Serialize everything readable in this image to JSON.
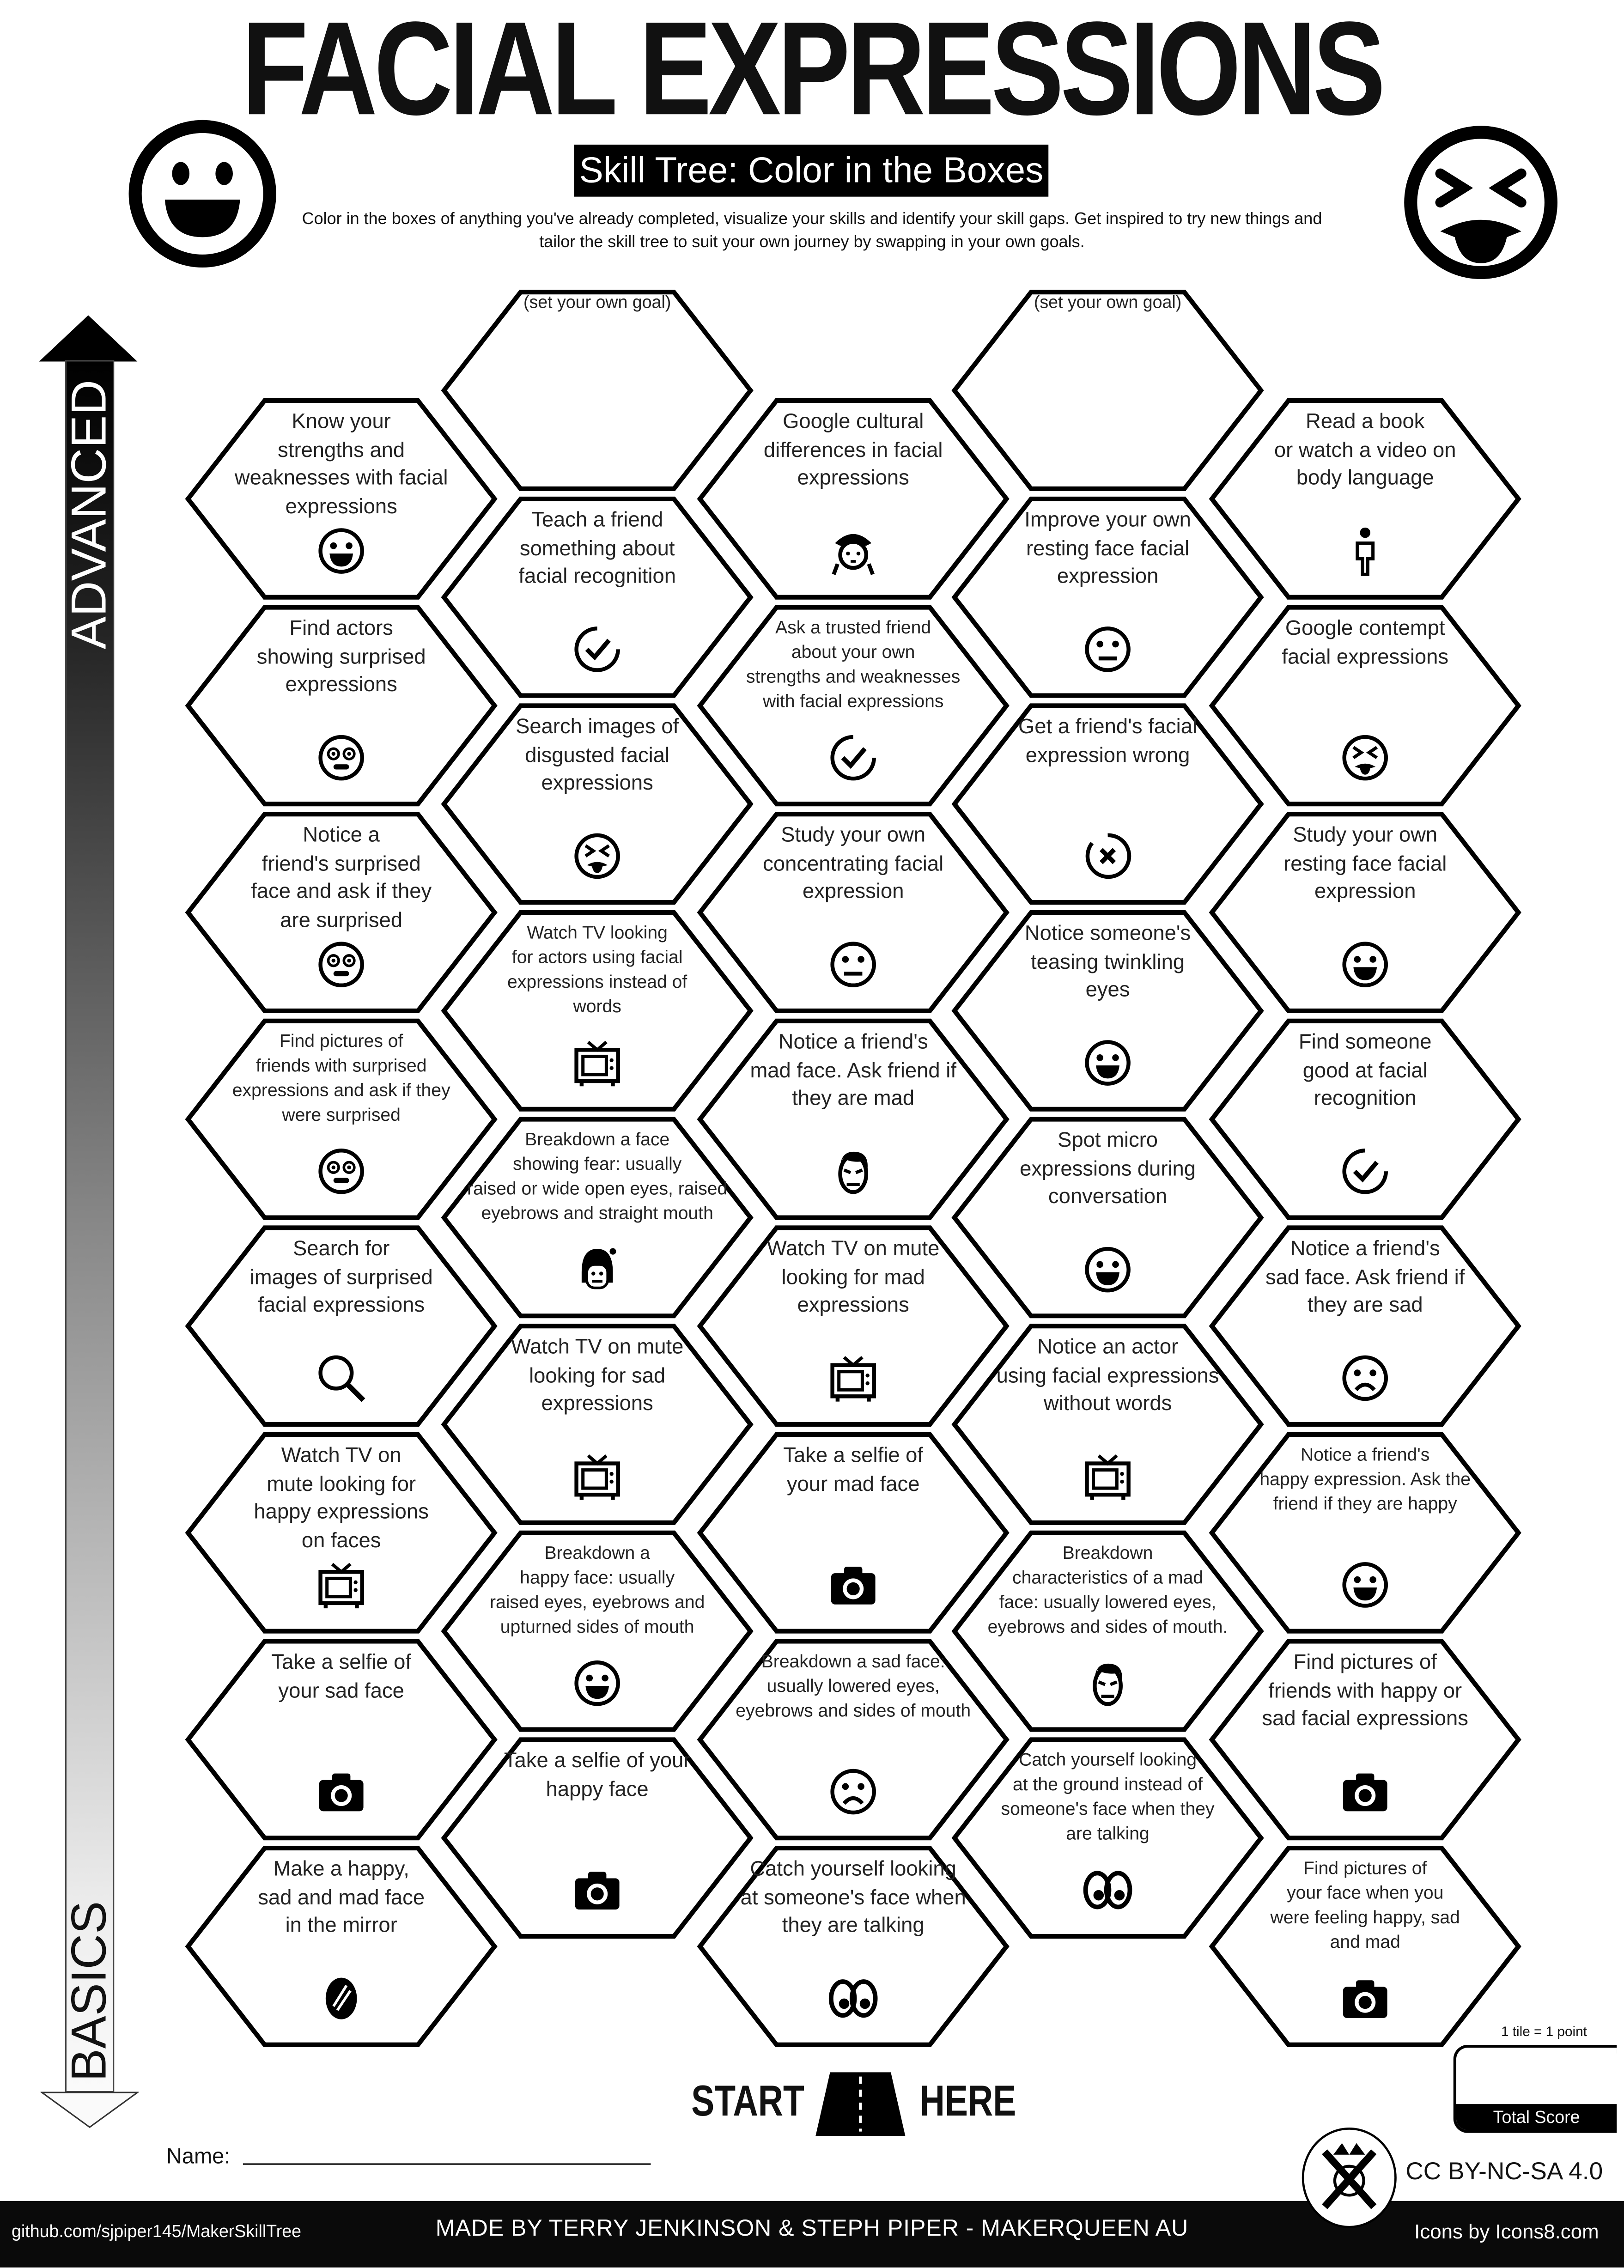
{
  "header": {
    "title": "FACIAL EXPRESSIONS",
    "subtitle": "Skill Tree: Color in the Boxes",
    "description": "Color in the boxes of anything you've already completed, visualize your skills and identify your skill gaps.  Get inspired to try new things and tailor the skill tree to suit your own journey by swapping in your own goals.",
    "left_icon": "happy-face-icon",
    "right_icon": "disgusted-face-icon"
  },
  "progression": {
    "top_label": "ADVANCED",
    "bottom_label": "BASICS"
  },
  "columns": [
    [
      {
        "text": "Know your\nstrengths and\nweaknesses with facial\nexpressions",
        "icon": "smile"
      },
      {
        "text": "Find actors\nshowing surprised\nexpressions",
        "icon": "surprised"
      },
      {
        "text": "Notice a\nfriend's surprised\nface and ask if they\nare surprised",
        "icon": "surprised"
      },
      {
        "text": "Find pictures of\nfriends with surprised\nexpressions and ask if they\nwere surprised",
        "icon": "surprised"
      },
      {
        "text": "Search for\nimages of surprised\nfacial expressions",
        "icon": "search"
      },
      {
        "text": "Watch TV on\nmute looking for\nhappy expressions\non faces",
        "icon": "tv"
      },
      {
        "text": "Take a selfie of\nyour sad face",
        "icon": "camera"
      },
      {
        "text": "Make a happy,\nsad and mad face\nin the mirror",
        "icon": "mirror"
      }
    ],
    [
      {
        "text": "(set your own goal)",
        "icon": ""
      },
      {
        "text": "Teach a friend\nsomething about\nfacial recognition",
        "icon": "check"
      },
      {
        "text": "Search images of\ndisgusted facial\nexpressions",
        "icon": "disgusted"
      },
      {
        "text": "Watch TV looking\nfor actors using facial\nexpressions instead of\nwords",
        "icon": "tv"
      },
      {
        "text": "Breakdown a face\nshowing fear: usually\nraised or wide open eyes, raised\neyebrows and straight mouth",
        "icon": "fear"
      },
      {
        "text": "Watch TV on mute\nlooking for sad\nexpressions",
        "icon": "tv"
      },
      {
        "text": "Breakdown a\nhappy face: usually\nraised eyes, eyebrows and\nupturned sides of mouth",
        "icon": "smile"
      },
      {
        "text": "Take a selfie of your\nhappy face",
        "icon": "camera"
      }
    ],
    [
      {
        "text": "Google cultural\ndifferences in facial\nexpressions",
        "icon": "geisha"
      },
      {
        "text": "Ask a trusted friend\nabout your own\nstrengths and weaknesses\nwith facial expressions",
        "icon": "check"
      },
      {
        "text": "Study your own\nconcentrating facial\nexpression",
        "icon": "neutral"
      },
      {
        "text": "Notice a friend's\nmad face. Ask friend if\nthey are mad",
        "icon": "mad"
      },
      {
        "text": "Watch TV on mute\nlooking for mad\nexpressions",
        "icon": "tv"
      },
      {
        "text": "Take a selfie of\nyour mad face",
        "icon": "camera"
      },
      {
        "text": "Breakdown a sad face:\nusually lowered eyes,\neyebrows and sides of mouth",
        "icon": "sad"
      },
      {
        "text": "Catch yourself looking\nat someone's face when\nthey are talking",
        "icon": "eyes"
      }
    ],
    [
      {
        "text": "(set your own goal)",
        "icon": ""
      },
      {
        "text": "Improve your own\nresting face facial\nexpression",
        "icon": "neutral"
      },
      {
        "text": "Get a friend's facial\nexpression wrong",
        "icon": "xface"
      },
      {
        "text": "Notice someone's\nteasing twinkling\neyes",
        "icon": "smile"
      },
      {
        "text": "Spot micro\nexpressions during\nconversation",
        "icon": "smile"
      },
      {
        "text": "Notice an actor\nusing facial expressions\nwithout words",
        "icon": "tv"
      },
      {
        "text": "Breakdown\ncharacteristics of a mad\nface: usually lowered eyes,\neyebrows and sides of mouth.",
        "icon": "mad"
      },
      {
        "text": "Catch yourself looking\nat the ground instead of\nsomeone's face when they\nare talking",
        "icon": "eyes"
      }
    ],
    [
      {
        "text": "Read a book\nor watch a video on\nbody language",
        "icon": "body"
      },
      {
        "text": "Google contempt\nfacial expressions",
        "icon": "disgusted"
      },
      {
        "text": "Study your own\nresting face facial\nexpression",
        "icon": "smile"
      },
      {
        "text": "Find someone\ngood at facial\nrecognition",
        "icon": "check"
      },
      {
        "text": "Notice a friend's\nsad face. Ask friend if\nthey are sad",
        "icon": "sad"
      },
      {
        "text": "Notice a friend's\nhappy expression. Ask the\nfriend if they are happy",
        "icon": "smile"
      },
      {
        "text": "Find pictures of\nfriends with happy or\nsad facial expressions",
        "icon": "camera"
      },
      {
        "text": "Find pictures of\nyour face when you\nwere feeling happy, sad\nand mad",
        "icon": "camera"
      }
    ]
  ],
  "start": {
    "left": "START",
    "right": "HERE",
    "icon": "road-icon"
  },
  "score": {
    "note": "1 tile = 1 point",
    "label": "Total Score"
  },
  "name_label": "Name:",
  "license": "CC BY-NC-SA 4.0",
  "footer": {
    "github": "github.com/sjpiper145/MakerSkillTree",
    "credits": "MADE BY TERRY JENKINSON & STEPH PIPER  -  MAKERQUEEN AU",
    "icons_credit": "Icons by Icons8.com"
  }
}
